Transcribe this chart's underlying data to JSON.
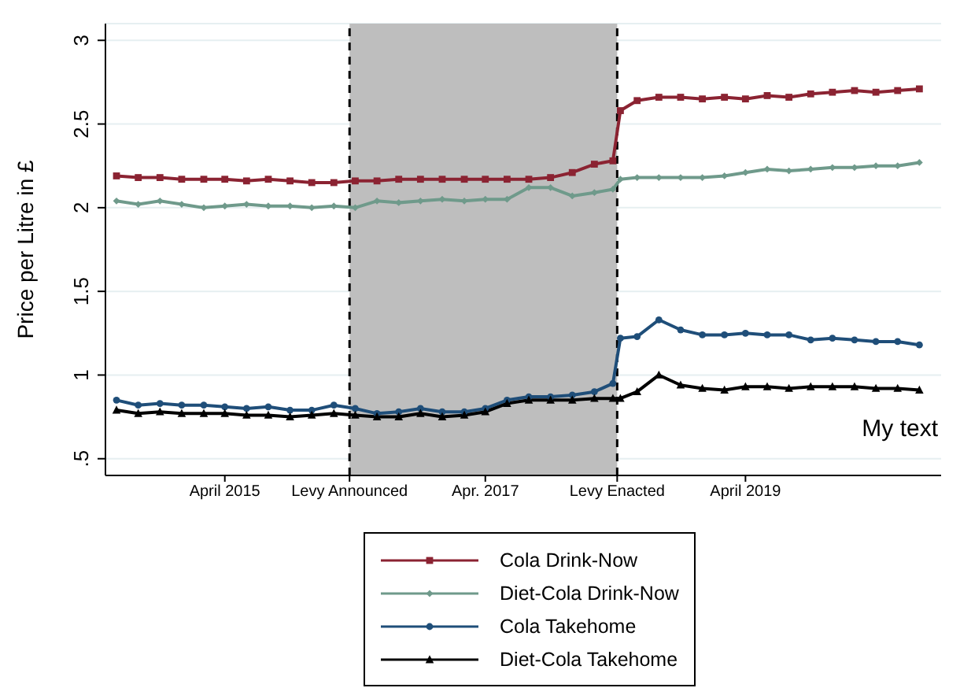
{
  "chart_data": {
    "type": "line",
    "ylabel": "Price per Litre in £",
    "x": [
      "2014-06-01",
      "2014-08-01",
      "2014-10-01",
      "2014-12-01",
      "2015-02-01",
      "2015-04-01",
      "2015-06-01",
      "2015-08-01",
      "2015-10-01",
      "2015-12-01",
      "2016-02-01",
      "2016-04-01",
      "2016-06-01",
      "2016-08-01",
      "2016-10-01",
      "2016-12-01",
      "2017-02-01",
      "2017-04-01",
      "2017-06-01",
      "2017-08-01",
      "2017-10-01",
      "2017-12-01",
      "2018-02-01",
      "2018-03-25",
      "2018-04-15",
      "2018-06-01",
      "2018-08-01",
      "2018-10-01",
      "2018-12-01",
      "2019-02-01",
      "2019-04-01",
      "2019-06-01",
      "2019-08-01",
      "2019-10-01",
      "2019-12-01",
      "2020-02-01",
      "2020-04-01",
      "2020-06-01",
      "2020-08-01"
    ],
    "series": [
      {
        "name": "Cola Drink-Now",
        "color": "#8b2332",
        "marker": "square",
        "values": [
          2.19,
          2.18,
          2.18,
          2.17,
          2.17,
          2.17,
          2.16,
          2.17,
          2.16,
          2.15,
          2.15,
          2.16,
          2.16,
          2.17,
          2.17,
          2.17,
          2.17,
          2.17,
          2.17,
          2.17,
          2.18,
          2.21,
          2.26,
          2.28,
          2.58,
          2.64,
          2.66,
          2.66,
          2.65,
          2.66,
          2.65,
          2.67,
          2.66,
          2.68,
          2.69,
          2.7,
          2.69,
          2.7,
          2.71
        ]
      },
      {
        "name": "Diet-Cola Drink-Now",
        "color": "#6f9a8b",
        "marker": "diamond",
        "values": [
          2.04,
          2.02,
          2.04,
          2.02,
          2.0,
          2.01,
          2.02,
          2.01,
          2.01,
          2.0,
          2.01,
          2.0,
          2.04,
          2.03,
          2.04,
          2.05,
          2.04,
          2.05,
          2.05,
          2.12,
          2.12,
          2.07,
          2.09,
          2.11,
          2.17,
          2.18,
          2.18,
          2.18,
          2.18,
          2.19,
          2.21,
          2.23,
          2.22,
          2.23,
          2.24,
          2.24,
          2.25,
          2.25,
          2.27
        ]
      },
      {
        "name": "Cola Takehome",
        "color": "#1f4e79",
        "marker": "circle",
        "values": [
          0.85,
          0.82,
          0.83,
          0.82,
          0.82,
          0.81,
          0.8,
          0.81,
          0.79,
          0.79,
          0.82,
          0.8,
          0.77,
          0.78,
          0.8,
          0.78,
          0.78,
          0.8,
          0.85,
          0.87,
          0.87,
          0.88,
          0.9,
          0.95,
          1.22,
          1.23,
          1.33,
          1.27,
          1.24,
          1.24,
          1.25,
          1.24,
          1.24,
          1.21,
          1.22,
          1.21,
          1.2,
          1.2,
          1.18
        ]
      },
      {
        "name": "Diet-Cola Takehome",
        "color": "#000000",
        "marker": "triangle",
        "values": [
          0.79,
          0.77,
          0.78,
          0.77,
          0.77,
          0.77,
          0.76,
          0.76,
          0.75,
          0.76,
          0.77,
          0.76,
          0.75,
          0.75,
          0.77,
          0.75,
          0.76,
          0.78,
          0.83,
          0.85,
          0.85,
          0.85,
          0.86,
          0.86,
          0.86,
          0.9,
          1.0,
          0.94,
          0.92,
          0.91,
          0.93,
          0.93,
          0.92,
          0.93,
          0.93,
          0.93,
          0.92,
          0.92,
          0.91
        ]
      }
    ],
    "xlim": [
      "2014-05-01",
      "2020-10-01"
    ],
    "xticks": [
      {
        "value": "2015-04-01",
        "label": "April 2015"
      },
      {
        "value": "2016-03-16",
        "label": "Levy Announced"
      },
      {
        "value": "2017-04-01",
        "label": "Apr. 2017"
      },
      {
        "value": "2018-04-06",
        "label": "Levy Enacted"
      },
      {
        "value": "2019-04-01",
        "label": "April 2019"
      }
    ],
    "ylim": [
      0.4,
      3.1
    ],
    "yticks": [
      {
        "value": 0.5,
        "label": ".5"
      },
      1,
      1.5,
      2,
      2.5,
      3
    ],
    "bands": [
      {
        "axis": "x",
        "from": "2016-03-16",
        "to": "2018-04-06",
        "color": "#bebebe"
      }
    ],
    "ref_lines": [
      {
        "axis": "x",
        "value": "2016-03-16",
        "line_style": "dashed",
        "color": "#000000"
      },
      {
        "axis": "x",
        "value": "2018-04-06",
        "line_style": "dashed",
        "color": "#000000"
      }
    ],
    "annotations": [
      "My text"
    ],
    "grid": "y",
    "legend": "bottom",
    "line_style": "solid"
  }
}
